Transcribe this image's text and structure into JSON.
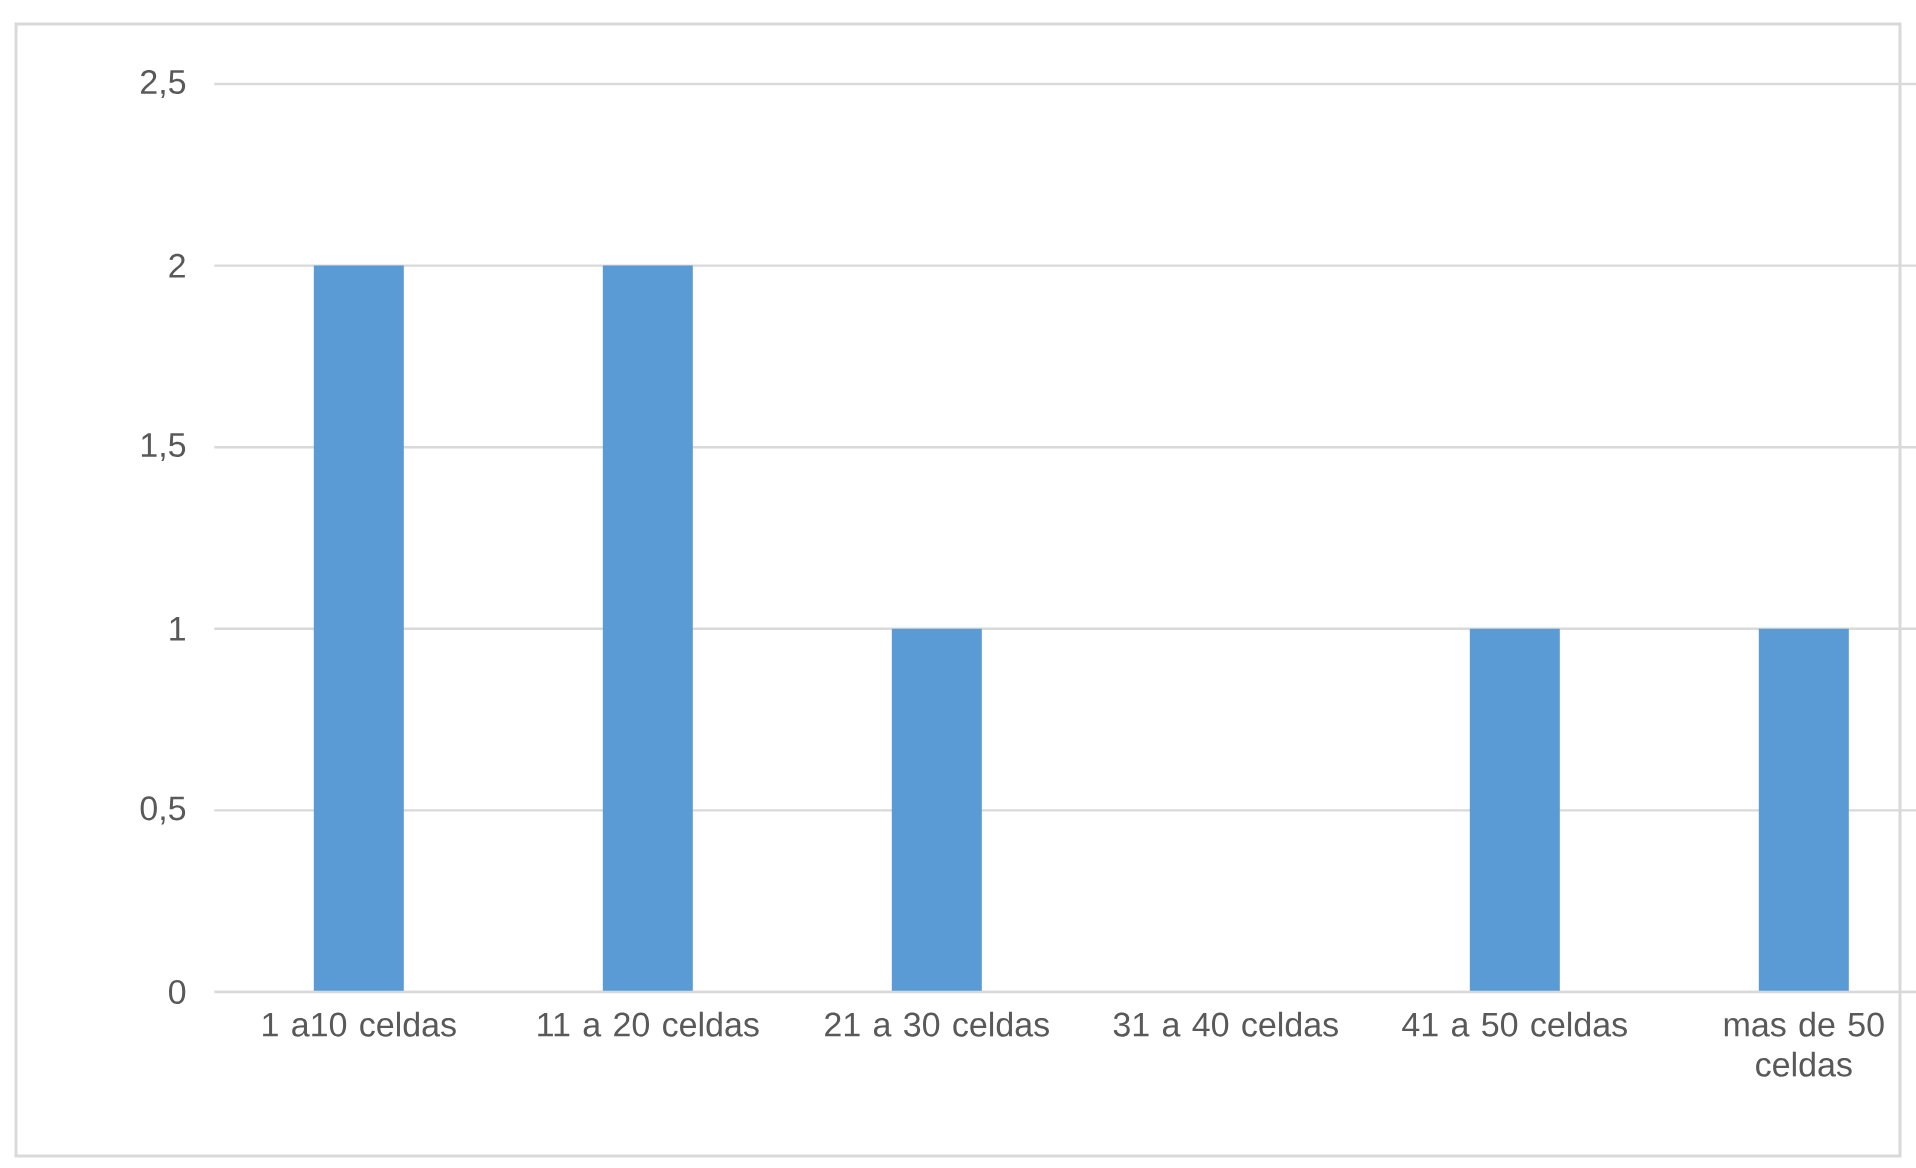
{
  "chart_data": {
    "type": "bar",
    "categories": [
      "1 a10 celdas",
      "11 a 20 celdas",
      "21 a 30 celdas",
      "31 a 40 celdas",
      "41 a 50 celdas",
      "mas de 50 celdas"
    ],
    "values": [
      2,
      2,
      1,
      0,
      1,
      1
    ],
    "color": "#5b9bd5",
    "ylim": [
      0,
      2.5
    ],
    "yticks": [
      0,
      {
        "value": 0.5,
        "label": "0,5"
      },
      1,
      {
        "value": 1.5,
        "label": "1,5"
      },
      2,
      {
        "value": 2.5,
        "label": "2,5"
      }
    ],
    "grid": "y"
  }
}
